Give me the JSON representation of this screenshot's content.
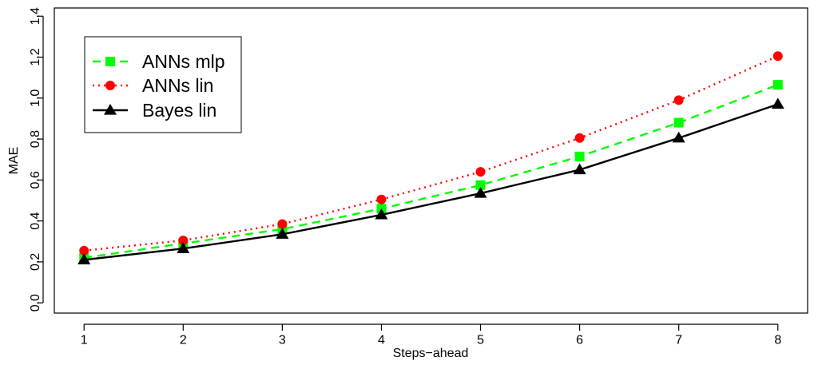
{
  "chart_data": {
    "type": "line",
    "title": "",
    "xlabel": "Steps−ahead",
    "ylabel": "MAE",
    "x": [
      1,
      2,
      3,
      4,
      5,
      6,
      7,
      8
    ],
    "xlim": [
      0.7,
      8.3
    ],
    "ylim": [
      -0.05,
      1.44
    ],
    "xticks": [
      "1",
      "2",
      "3",
      "4",
      "5",
      "6",
      "7",
      "8"
    ],
    "yticks": [
      "0.0",
      "0.2",
      "0.4",
      "0.6",
      "0.8",
      "1.0",
      "1.2",
      "1.4"
    ],
    "grid": false,
    "legend_position": "top-left",
    "series": [
      {
        "name": "ANNs mlp",
        "values": [
          0.22,
          0.29,
          0.36,
          0.46,
          0.575,
          0.715,
          0.88,
          1.065
        ],
        "color": "#00ff00",
        "line_style": "dashed",
        "marker": "square"
      },
      {
        "name": "ANNs lin",
        "values": [
          0.255,
          0.305,
          0.385,
          0.505,
          0.64,
          0.805,
          0.99,
          1.205
        ],
        "color": "#ff0000",
        "line_style": "dotted",
        "marker": "circle"
      },
      {
        "name": "Bayes lin",
        "values": [
          0.21,
          0.265,
          0.335,
          0.43,
          0.535,
          0.65,
          0.805,
          0.97
        ],
        "color": "#000000",
        "line_style": "solid",
        "marker": "triangle"
      }
    ]
  }
}
